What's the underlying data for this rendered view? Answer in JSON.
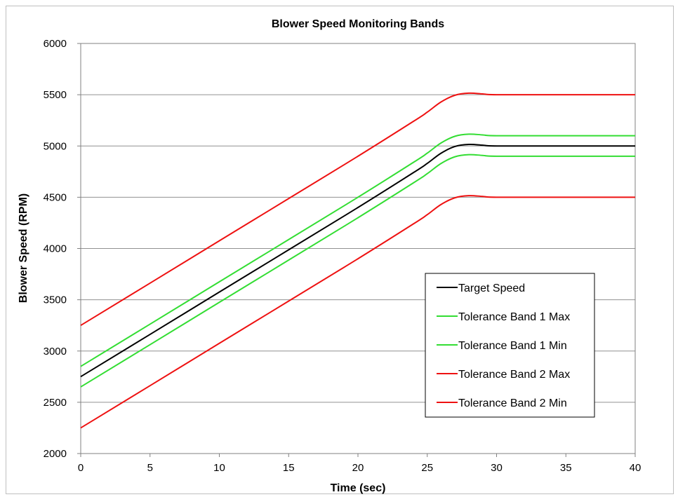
{
  "chart_data": {
    "type": "line",
    "title": "Blower Speed Monitoring Bands",
    "xlabel": "Time (sec)",
    "ylabel": "Blower Speed (RPM)",
    "xlim": [
      0,
      40
    ],
    "ylim": [
      2000,
      6000
    ],
    "x_ticks": [
      "0",
      "5",
      "10",
      "15",
      "20",
      "25",
      "30",
      "35",
      "40"
    ],
    "y_ticks": [
      "2000",
      "2500",
      "3000",
      "3500",
      "4000",
      "4500",
      "5000",
      "5500",
      "6000"
    ],
    "grid": "horizontal",
    "legend_position": "lower-right",
    "series": [
      {
        "name": "Target Speed",
        "color": "#000000",
        "points": [
          [
            0,
            2750
          ],
          [
            5,
            3162
          ],
          [
            10,
            3575
          ],
          [
            15,
            3987
          ],
          [
            20,
            4400
          ],
          [
            24,
            4740
          ],
          [
            25,
            4830
          ],
          [
            26,
            4930
          ],
          [
            27,
            4995
          ],
          [
            28,
            5015
          ],
          [
            29,
            5008
          ],
          [
            30,
            5000
          ],
          [
            35,
            5000
          ],
          [
            40,
            5000
          ]
        ]
      },
      {
        "name": "Tolerance Band 1 Max",
        "color": "#33dd33",
        "points": [
          [
            0,
            2850
          ],
          [
            5,
            3262
          ],
          [
            10,
            3675
          ],
          [
            15,
            4087
          ],
          [
            20,
            4500
          ],
          [
            24,
            4840
          ],
          [
            25,
            4930
          ],
          [
            26,
            5030
          ],
          [
            27,
            5095
          ],
          [
            28,
            5115
          ],
          [
            29,
            5108
          ],
          [
            30,
            5100
          ],
          [
            35,
            5100
          ],
          [
            40,
            5100
          ]
        ]
      },
      {
        "name": "Tolerance Band 1 Min",
        "color": "#33dd33",
        "points": [
          [
            0,
            2650
          ],
          [
            5,
            3062
          ],
          [
            10,
            3475
          ],
          [
            15,
            3887
          ],
          [
            20,
            4300
          ],
          [
            24,
            4640
          ],
          [
            25,
            4730
          ],
          [
            26,
            4830
          ],
          [
            27,
            4895
          ],
          [
            28,
            4915
          ],
          [
            29,
            4908
          ],
          [
            30,
            4900
          ],
          [
            35,
            4900
          ],
          [
            40,
            4900
          ]
        ]
      },
      {
        "name": "Tolerance Band 2 Max",
        "color": "#ee1111",
        "points": [
          [
            0,
            3250
          ],
          [
            5,
            3662
          ],
          [
            10,
            4075
          ],
          [
            15,
            4487
          ],
          [
            20,
            4900
          ],
          [
            24,
            5240
          ],
          [
            25,
            5330
          ],
          [
            26,
            5430
          ],
          [
            27,
            5495
          ],
          [
            28,
            5515
          ],
          [
            29,
            5508
          ],
          [
            30,
            5500
          ],
          [
            35,
            5500
          ],
          [
            40,
            5500
          ]
        ]
      },
      {
        "name": "Tolerance Band 2 Min",
        "color": "#ee1111",
        "points": [
          [
            0,
            2250
          ],
          [
            5,
            2662
          ],
          [
            10,
            3075
          ],
          [
            15,
            3487
          ],
          [
            20,
            3900
          ],
          [
            24,
            4240
          ],
          [
            25,
            4330
          ],
          [
            26,
            4430
          ],
          [
            27,
            4495
          ],
          [
            28,
            4515
          ],
          [
            29,
            4508
          ],
          [
            30,
            4500
          ],
          [
            35,
            4500
          ],
          [
            40,
            4500
          ]
        ]
      }
    ]
  }
}
